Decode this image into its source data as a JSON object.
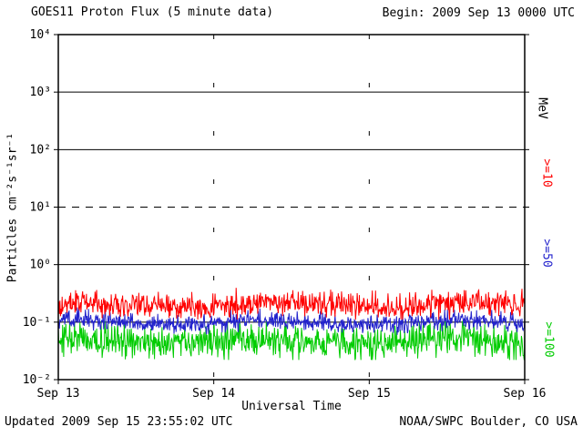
{
  "header": {
    "begin_label": "Begin: 2009 Sep 13 0000 UTC"
  },
  "footer": {
    "updated": "Updated 2009 Sep 15 23:55:02 UTC",
    "credit": "NOAA/SWPC Boulder, CO USA"
  },
  "chart_data": {
    "type": "line",
    "title": "GOES11 Proton Flux (5 minute data)",
    "xlabel": "Universal Time",
    "ylabel": "Particles cm⁻²s⁻¹sr⁻¹",
    "right_axis_title": "MeV",
    "x_ticks": [
      "Sep 13",
      "Sep 14",
      "Sep 15",
      "Sep 16"
    ],
    "y_ticks": [
      "10⁴",
      "10³",
      "10²",
      "10¹",
      "10⁰",
      "10⁻¹",
      "10⁻²"
    ],
    "y_range_log10": [
      -2,
      4
    ],
    "x_range_days": [
      0,
      3
    ],
    "cadence_minutes": 5,
    "points_per_series": 864,
    "grid": {
      "solid_ref_lines_log10": [
        3,
        2,
        0,
        -1
      ],
      "dashed_ref_lines_log10": [
        1
      ],
      "day_boundary_lines_days": [
        1,
        2
      ]
    },
    "axis_color": "#000000",
    "series": [
      {
        "name": "Proton flux >=10 MeV",
        "label": ">=10",
        "color": "#ff0000",
        "baseline_flux": 0.2,
        "observed_range": [
          0.11,
          0.45
        ],
        "noise_sigma_log10": 0.11,
        "seed": 101
      },
      {
        "name": "Proton flux >=50 MeV",
        "label": ">=50",
        "color": "#2222cc",
        "baseline_flux": 0.1,
        "observed_range": [
          0.055,
          0.19
        ],
        "noise_sigma_log10": 0.08,
        "seed": 202
      },
      {
        "name": "Proton flux >=100 MeV",
        "label": ">=100",
        "color": "#00cc00",
        "baseline_flux": 0.047,
        "observed_range": [
          0.022,
          0.105
        ],
        "noise_sigma_log10": 0.14,
        "seed": 303
      }
    ],
    "legend_position": "right",
    "background": "#ffffff"
  }
}
